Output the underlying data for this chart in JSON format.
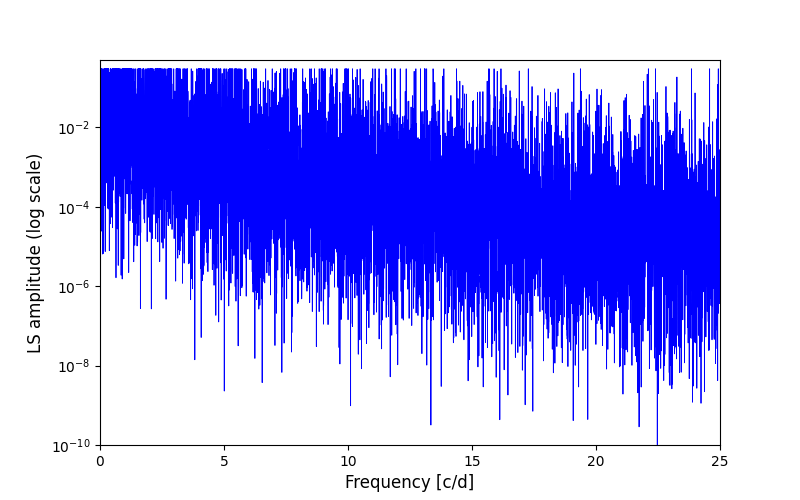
{
  "xlabel": "Frequency [c/d]",
  "ylabel": "LS amplitude (log scale)",
  "line_color": "#0000ff",
  "line_width": 0.6,
  "xlim": [
    0,
    25
  ],
  "ylim": [
    1e-10,
    0.5
  ],
  "yscale": "log",
  "figsize": [
    8.0,
    5.0
  ],
  "dpi": 100,
  "xticks": [
    0,
    5,
    10,
    15,
    20,
    25
  ],
  "background_color": "#ffffff",
  "seed": 12345,
  "n_points": 8000,
  "freq_max": 25.0
}
